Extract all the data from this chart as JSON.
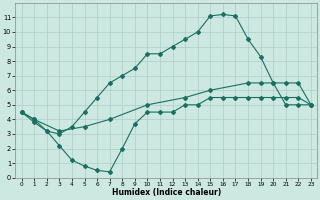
{
  "xlabel": "Humidex (Indice chaleur)",
  "bg_color": "#cce8e0",
  "grid_color": "#aacfc8",
  "line_color": "#1a7060",
  "xlim": [
    -0.5,
    23.5
  ],
  "ylim": [
    0,
    12
  ],
  "xticks": [
    0,
    1,
    2,
    3,
    4,
    5,
    6,
    7,
    8,
    9,
    10,
    11,
    12,
    13,
    14,
    15,
    16,
    17,
    18,
    19,
    20,
    21,
    22,
    23
  ],
  "yticks": [
    0,
    1,
    2,
    3,
    4,
    5,
    6,
    7,
    8,
    9,
    10,
    11
  ],
  "line1_x": [
    0,
    1,
    2,
    3,
    4,
    5,
    6,
    7,
    8,
    9,
    10,
    11,
    12,
    13,
    14,
    15,
    16,
    17,
    18,
    19,
    20,
    21,
    22,
    23
  ],
  "line1_y": [
    4.5,
    4.0,
    3.2,
    3.0,
    3.5,
    4.5,
    5.5,
    6.5,
    7.0,
    7.5,
    8.5,
    8.5,
    9.0,
    9.5,
    10.0,
    11.1,
    11.2,
    11.1,
    9.5,
    8.3,
    6.5,
    5.0,
    5.0,
    5.0
  ],
  "line2_x": [
    0,
    1,
    3,
    5,
    7,
    10,
    13,
    15,
    18,
    19,
    20,
    21,
    22,
    23
  ],
  "line2_y": [
    4.5,
    4.0,
    3.2,
    3.5,
    4.0,
    5.0,
    5.5,
    6.0,
    6.5,
    6.5,
    6.5,
    6.5,
    6.5,
    5.0
  ],
  "line3_x": [
    0,
    1,
    2,
    3,
    4,
    5,
    6,
    7,
    8,
    9,
    10,
    11,
    12,
    13,
    14,
    15,
    16,
    17,
    18,
    19,
    20,
    21,
    22,
    23
  ],
  "line3_y": [
    4.5,
    3.8,
    3.2,
    2.2,
    1.2,
    0.8,
    0.5,
    0.4,
    2.0,
    3.7,
    4.5,
    4.5,
    4.5,
    5.0,
    5.0,
    5.5,
    5.5,
    5.5,
    5.5,
    5.5,
    5.5,
    5.5,
    5.5,
    5.0
  ]
}
